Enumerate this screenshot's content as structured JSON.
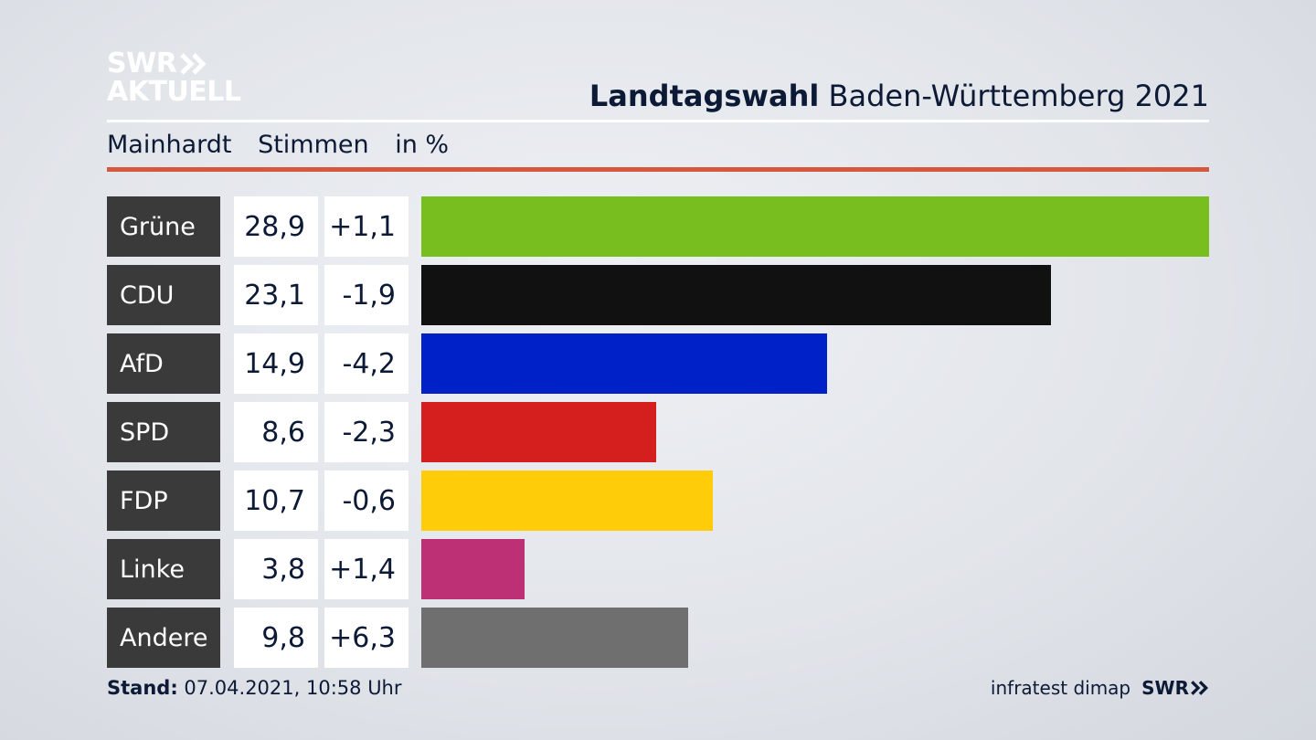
{
  "brand": {
    "logo_line1": "SWR",
    "logo_line2": "AKTUELL"
  },
  "header": {
    "title_bold": "Landtagswahl",
    "title_rest": "Baden-Württemberg 2021"
  },
  "subheader": {
    "place": "Mainhardt",
    "measure": "Stimmen",
    "unit": "in %"
  },
  "chart_data": {
    "type": "bar",
    "orientation": "horizontal",
    "categories": [
      "Grüne",
      "CDU",
      "AfD",
      "SPD",
      "FDP",
      "Linke",
      "Andere"
    ],
    "values": [
      28.9,
      23.1,
      14.9,
      8.6,
      10.7,
      3.8,
      9.8
    ],
    "value_labels": [
      "28,9",
      "23,1",
      "14,9",
      "8,6",
      "10,7",
      "3,8",
      "9,8"
    ],
    "changes": [
      1.1,
      -1.9,
      -4.2,
      -2.3,
      -0.6,
      1.4,
      6.3
    ],
    "change_labels": [
      "+1,1",
      "-1,9",
      "-4,2",
      "-2,3",
      "-0,6",
      "+1,4",
      "+6,3"
    ],
    "colors": [
      "#78be1e",
      "#111111",
      "#0021c8",
      "#d51e1e",
      "#ffcc0a",
      "#be3075",
      "#6f6f6f"
    ],
    "xlim": [
      0,
      28.9
    ],
    "grid": false
  },
  "footer": {
    "stand_label": "Stand:",
    "stand_value": "07.04.2021, 10:58 Uhr",
    "source": "infratest dimap",
    "swr": "SWR"
  }
}
